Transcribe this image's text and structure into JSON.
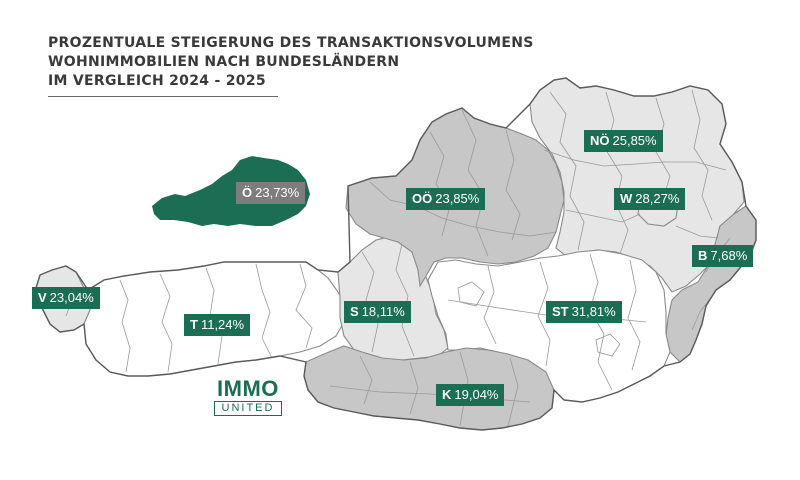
{
  "title": {
    "lines": [
      "PROZENTUALE STEIGERUNG DES TRANSAKTIONSVOLUMENS",
      "WOHNIMMOBILIEN NACH BUNDESLÄNDERN",
      "IM VERGLEICH 2024 - 2025"
    ]
  },
  "national": {
    "abbr": "Ö",
    "value": "23,73%"
  },
  "states": [
    {
      "abbr": "NÖ",
      "value": "25,85%",
      "shade": "light"
    },
    {
      "abbr": "OÖ",
      "value": "23,85%",
      "shade": "dark"
    },
    {
      "abbr": "W",
      "value": "28,27%",
      "shade": "light"
    },
    {
      "abbr": "B",
      "value": "7,68%",
      "shade": "dark"
    },
    {
      "abbr": "V",
      "value": "23,04%",
      "shade": "light"
    },
    {
      "abbr": "T",
      "value": "11,24%",
      "shade": "white"
    },
    {
      "abbr": "S",
      "value": "18,11%",
      "shade": "light"
    },
    {
      "abbr": "ST",
      "value": "31,81%",
      "shade": "white"
    },
    {
      "abbr": "K",
      "value": "19,04%",
      "shade": "dark"
    }
  ],
  "logo": {
    "main": "IMMO",
    "sub": "UNITED"
  },
  "colors": {
    "label_bg": "#1b6e53",
    "national_label_bg": "#7d7d7d",
    "inset_map": "#1b6e53",
    "title_text": "#3a3a3a"
  }
}
